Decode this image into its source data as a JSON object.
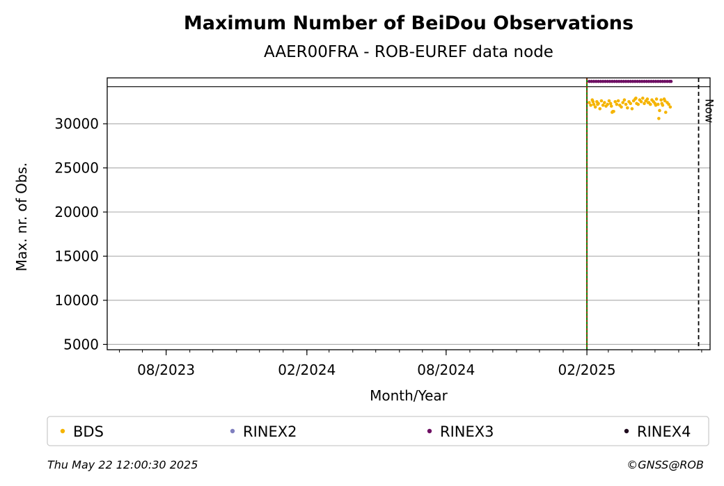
{
  "chart_data": {
    "type": "scatter",
    "title": "Maximum Number of BeiDou Observations",
    "subtitle": "AAER00FRA - ROB-EUREF data node",
    "xlabel": "Month/Year",
    "ylabel": "Max. nr. of Obs.",
    "xlim": [
      "2023-05-16",
      "2025-07-12"
    ],
    "ylim": [
      4400,
      35200
    ],
    "x_ticks": [
      {
        "date": "2023-08-01",
        "label": "08/2023"
      },
      {
        "date": "2024-02-01",
        "label": "02/2024"
      },
      {
        "date": "2024-08-01",
        "label": "08/2024"
      },
      {
        "date": "2025-02-01",
        "label": "02/2025"
      }
    ],
    "y_ticks": [
      5000,
      10000,
      15000,
      20000,
      25000,
      30000
    ],
    "grid": "horizontal",
    "hline": 34200,
    "vlines": [
      {
        "date": "2025-02-01",
        "style": "green-red-dashed"
      },
      {
        "date": "2025-06-27",
        "style": "black-dashed",
        "label": "Now"
      }
    ],
    "legend_position": "bottom",
    "series": [
      {
        "name": "BDS",
        "color": "#f5b400",
        "x": [
          "2025-02-04",
          "2025-02-06",
          "2025-02-08",
          "2025-02-10",
          "2025-02-12",
          "2025-02-14",
          "2025-02-16",
          "2025-02-18",
          "2025-02-20",
          "2025-02-22",
          "2025-02-24",
          "2025-02-26",
          "2025-02-28",
          "2025-03-02",
          "2025-03-04",
          "2025-03-06",
          "2025-03-08",
          "2025-03-10",
          "2025-03-12",
          "2025-03-14",
          "2025-03-16",
          "2025-03-18",
          "2025-03-20",
          "2025-03-22",
          "2025-03-24",
          "2025-03-26",
          "2025-03-28",
          "2025-03-30",
          "2025-04-01",
          "2025-04-03",
          "2025-04-05",
          "2025-04-07",
          "2025-04-09",
          "2025-04-11",
          "2025-04-13",
          "2025-04-15",
          "2025-04-17",
          "2025-04-19",
          "2025-04-21",
          "2025-04-23",
          "2025-04-25",
          "2025-04-27",
          "2025-04-29",
          "2025-05-01",
          "2025-05-03",
          "2025-05-05",
          "2025-05-07",
          "2025-05-09",
          "2025-05-11",
          "2025-05-13",
          "2025-05-15",
          "2025-05-17",
          "2025-05-19",
          "2025-05-21",
          "2025-05-06",
          "2025-05-10",
          "2025-05-14",
          "2025-03-05",
          "2025-03-07",
          "2025-02-15",
          "2025-02-09",
          "2025-04-06",
          "2025-04-22",
          "2025-05-02"
        ],
        "y": [
          32400,
          32100,
          32700,
          32200,
          31900,
          32500,
          32300,
          31700,
          32600,
          32100,
          32400,
          32000,
          32200,
          32600,
          32300,
          31300,
          31400,
          32500,
          32200,
          32600,
          32100,
          31900,
          32400,
          32700,
          32200,
          31800,
          32500,
          32300,
          31700,
          32600,
          32800,
          32300,
          32200,
          32700,
          32500,
          32900,
          32300,
          32600,
          32800,
          32400,
          32200,
          32700,
          32500,
          32300,
          32800,
          32200,
          31500,
          32700,
          32100,
          32800,
          31300,
          32400,
          32200,
          31900,
          30600,
          32300,
          32600,
          32000,
          31400,
          32200,
          32500,
          32900,
          32400,
          32100
        ]
      },
      {
        "name": "RINEX2",
        "color": "#7f7fbf",
        "x": [],
        "y": []
      },
      {
        "name": "RINEX3",
        "color": "#6e0f63",
        "x": [
          "2025-02-04",
          "2025-02-07",
          "2025-02-10",
          "2025-02-13",
          "2025-02-16",
          "2025-02-19",
          "2025-02-22",
          "2025-02-25",
          "2025-02-28",
          "2025-03-03",
          "2025-03-06",
          "2025-03-09",
          "2025-03-12",
          "2025-03-15",
          "2025-03-18",
          "2025-03-21",
          "2025-03-24",
          "2025-03-27",
          "2025-03-30",
          "2025-04-02",
          "2025-04-05",
          "2025-04-08",
          "2025-04-11",
          "2025-04-14",
          "2025-04-17",
          "2025-04-20",
          "2025-04-23",
          "2025-04-26",
          "2025-04-29",
          "2025-05-02",
          "2025-05-05",
          "2025-05-08",
          "2025-05-11",
          "2025-05-14",
          "2025-05-17",
          "2025-05-20",
          "2025-05-22"
        ],
        "y": [
          34800,
          34800,
          34800,
          34800,
          34800,
          34800,
          34800,
          34800,
          34800,
          34800,
          34800,
          34800,
          34800,
          34800,
          34800,
          34800,
          34800,
          34800,
          34800,
          34800,
          34800,
          34800,
          34800,
          34800,
          34800,
          34800,
          34800,
          34800,
          34800,
          34800,
          34800,
          34800,
          34800,
          34800,
          34800,
          34800,
          34800
        ]
      },
      {
        "name": "RINEX4",
        "color": "#1f0a1e",
        "x": [],
        "y": []
      }
    ]
  },
  "footer": {
    "timestamp": "Thu May 22 12:00:30 2025",
    "credit": "©GNSS@ROB"
  }
}
